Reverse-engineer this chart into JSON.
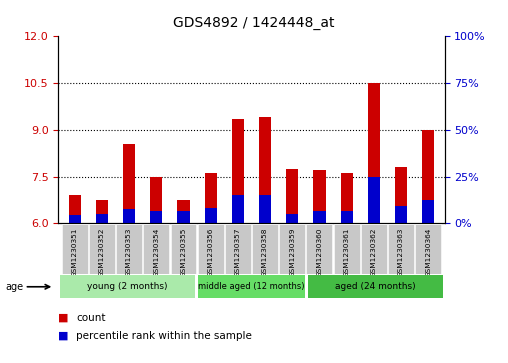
{
  "title": "GDS4892 / 1424448_at",
  "samples": [
    "GSM1230351",
    "GSM1230352",
    "GSM1230353",
    "GSM1230354",
    "GSM1230355",
    "GSM1230356",
    "GSM1230357",
    "GSM1230358",
    "GSM1230359",
    "GSM1230360",
    "GSM1230361",
    "GSM1230362",
    "GSM1230363",
    "GSM1230364"
  ],
  "count_values": [
    6.9,
    6.75,
    8.55,
    7.5,
    6.75,
    7.6,
    9.35,
    9.4,
    7.75,
    7.7,
    7.6,
    10.5,
    7.8,
    9.0
  ],
  "percentile_values": [
    6.25,
    6.3,
    6.45,
    6.4,
    6.4,
    6.5,
    6.9,
    6.9,
    6.3,
    6.4,
    6.4,
    7.5,
    6.55,
    6.75
  ],
  "base_value": 6.0,
  "ylim_left": [
    6,
    12
  ],
  "ylim_right": [
    0,
    100
  ],
  "yticks_left": [
    6,
    7.5,
    9,
    10.5,
    12
  ],
  "yticks_right": [
    0,
    25,
    50,
    75,
    100
  ],
  "groups": [
    {
      "label": "young (2 months)",
      "start": 0,
      "end": 5,
      "color": "#AAEAAA"
    },
    {
      "label": "middle aged (12 months)",
      "start": 5,
      "end": 9,
      "color": "#66DD66"
    },
    {
      "label": "aged (24 months)",
      "start": 9,
      "end": 14,
      "color": "#44BB44"
    }
  ],
  "bar_color_red": "#CC0000",
  "bar_color_blue": "#0000CC",
  "bar_width": 0.45,
  "tick_label_color_left": "#CC0000",
  "tick_label_color_right": "#0000CC",
  "legend_count": "count",
  "legend_percentile": "percentile rank within the sample",
  "age_label": "age",
  "sample_bg": "#C8C8C8",
  "plot_bg": "#FFFFFF"
}
